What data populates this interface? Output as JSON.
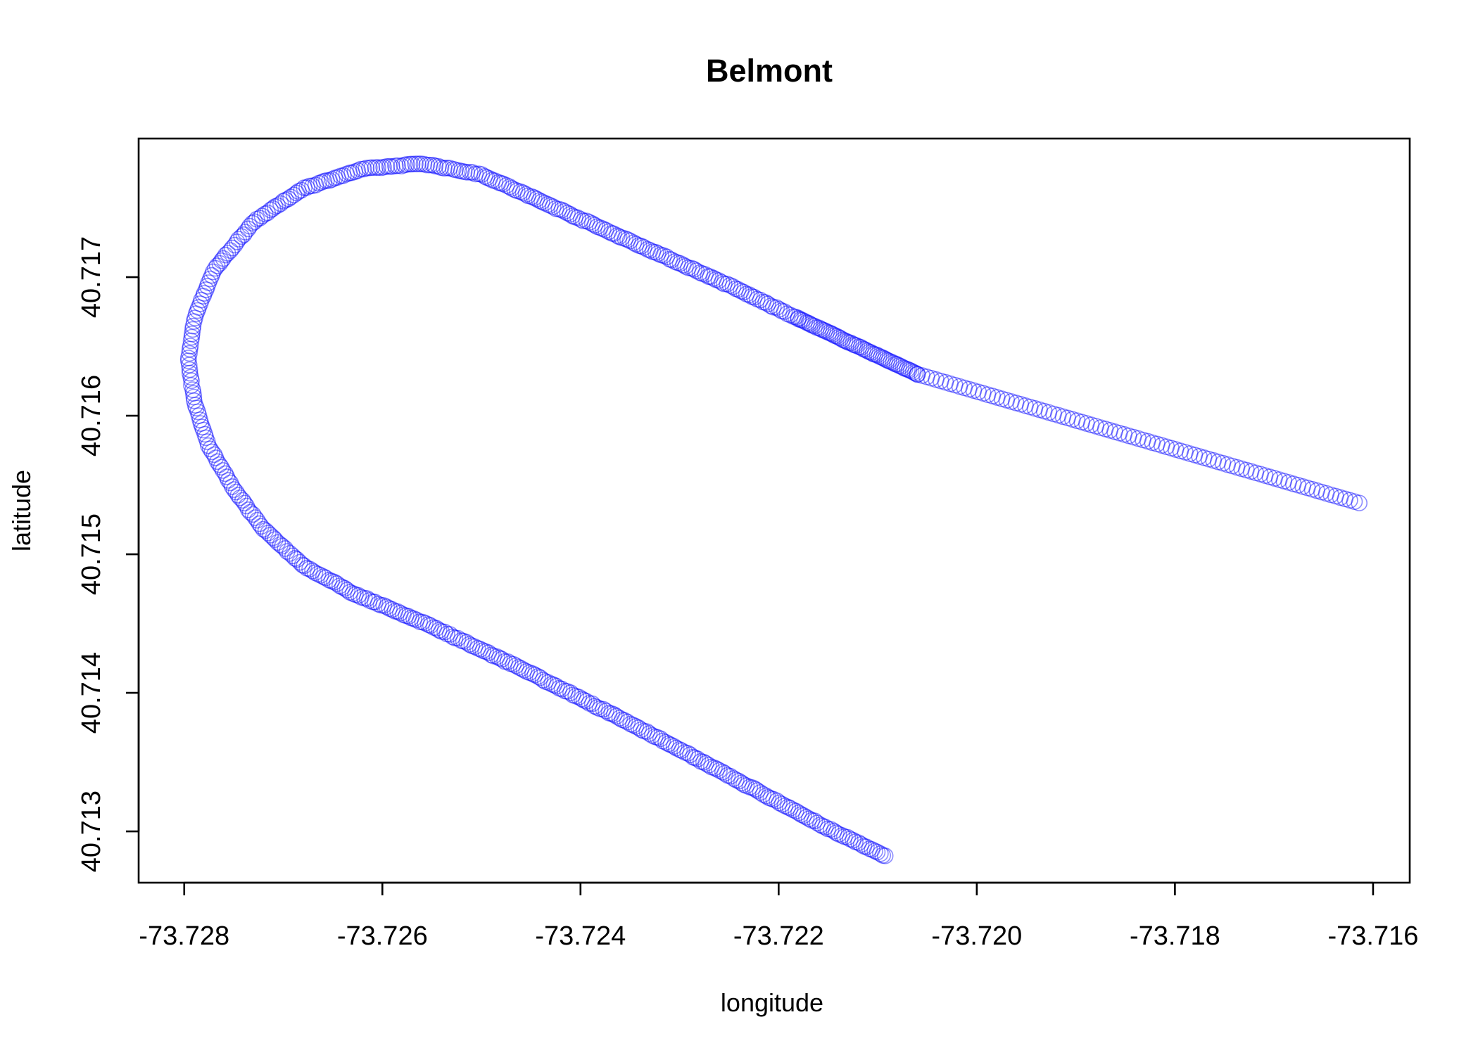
{
  "chart_data": {
    "type": "scatter",
    "title": "Belmont",
    "xlabel": "longitude",
    "ylabel": "latitude",
    "xlim": [
      -73.72846,
      -73.71563
    ],
    "ylim": [
      40.71263,
      40.718
    ],
    "x_ticks": [
      -73.728,
      -73.726,
      -73.724,
      -73.722,
      -73.72,
      -73.718,
      -73.716
    ],
    "x_tick_labels": [
      "-73.728",
      "-73.726",
      "-73.724",
      "-73.722",
      "-73.720",
      "-73.718",
      "-73.716"
    ],
    "y_ticks": [
      40.713,
      40.714,
      40.715,
      40.716,
      40.717
    ],
    "y_tick_labels": [
      "40.713",
      "40.714",
      "40.715",
      "40.716",
      "40.717"
    ],
    "grid": false,
    "legend": "none",
    "point_color": "#0000ff",
    "point_alpha": 0.45,
    "series": [
      {
        "path": [
          [
            -73.72092,
            40.71282
          ],
          [
            -73.7215,
            40.71302
          ],
          [
            -73.7225,
            40.7134
          ],
          [
            -73.7235,
            40.71378
          ],
          [
            -73.7245,
            40.71414
          ],
          [
            -73.7255,
            40.71448
          ],
          [
            -73.7263,
            40.71472
          ],
          [
            -73.7268,
            40.71492
          ],
          [
            -73.7272,
            40.71518
          ],
          [
            -73.7275,
            40.71547
          ],
          [
            -73.72775,
            40.71578
          ],
          [
            -73.7279,
            40.7161
          ],
          [
            -73.72796,
            40.7164
          ],
          [
            -73.7279,
            40.7167
          ],
          [
            -73.7277,
            40.71705
          ],
          [
            -73.7273,
            40.7174
          ],
          [
            -73.7268,
            40.71764
          ],
          [
            -73.7262,
            40.71778
          ],
          [
            -73.7256,
            40.71782
          ],
          [
            -73.725,
            40.71774
          ],
          [
            -73.7245,
            40.71758
          ],
          [
            -73.7235,
            40.71726
          ],
          [
            -73.7225,
            40.71694
          ],
          [
            -73.7218,
            40.7167
          ]
        ],
        "count": 520,
        "jitter": 9e-06
      },
      {
        "path": [
          [
            -73.7218,
            40.7167
          ],
          [
            -73.7206,
            40.7163
          ]
        ],
        "count": 60,
        "jitter": 6e-06
      },
      {
        "path": [
          [
            -73.7206,
            40.7163
          ],
          [
            -73.71614,
            40.71537
          ]
        ],
        "count": 95,
        "jitter": 0.0
      }
    ]
  }
}
